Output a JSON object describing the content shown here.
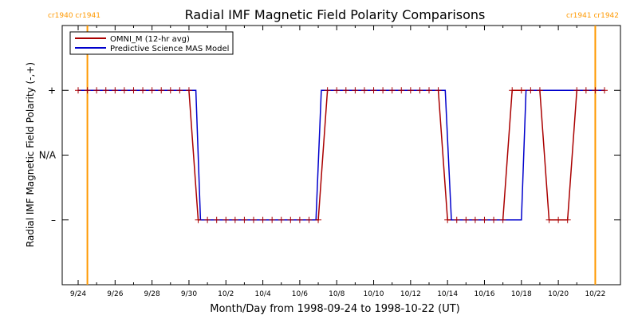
{
  "chart_data": {
    "type": "line",
    "title": "Radial IMF Magnetic Field Polarity Comparisons",
    "xlabel": "Month/Day from 1998-09-24 to 1998-10-22 (UT)",
    "ylabel": "Radial IMF Magnetic Field Polarity (-,+)",
    "xlim": [
      "1998-09-24",
      "1998-10-22"
    ],
    "ylim": [
      -2,
      2
    ],
    "x_ticks": [
      "9/24",
      "9/26",
      "9/28",
      "9/30",
      "10/2",
      "10/4",
      "10/6",
      "10/8",
      "10/10",
      "10/12",
      "10/14",
      "10/16",
      "10/18",
      "10/20",
      "10/22"
    ],
    "y_ticks": [
      {
        "value": 1,
        "label": "+"
      },
      {
        "value": 0,
        "label": "N/A"
      },
      {
        "value": -1,
        "label": "–"
      }
    ],
    "legend": {
      "placement": "top-left",
      "entries": [
        "OMNI_M (12-hr avg)",
        "Predictive Science MAS Model"
      ]
    },
    "rotation_markers": [
      {
        "date": "1998-09-24 12:00",
        "label": "cr1940 cr1941",
        "color": "#ff9900"
      },
      {
        "date": "1998-10-22 00:00",
        "label": "cr1941 cr1942",
        "color": "#ff9900"
      }
    ],
    "series": [
      {
        "name": "OMNI_M (12-hr avg)",
        "color": "#aa0000",
        "markers": true,
        "points": [
          [
            "1998-09-24 00:00",
            1
          ],
          [
            "1998-09-24 12:00",
            1
          ],
          [
            "1998-09-25 00:00",
            1
          ],
          [
            "1998-09-25 12:00",
            1
          ],
          [
            "1998-09-26 00:00",
            1
          ],
          [
            "1998-09-26 12:00",
            1
          ],
          [
            "1998-09-27 00:00",
            1
          ],
          [
            "1998-09-27 12:00",
            1
          ],
          [
            "1998-09-28 00:00",
            1
          ],
          [
            "1998-09-28 12:00",
            1
          ],
          [
            "1998-09-29 00:00",
            1
          ],
          [
            "1998-09-29 12:00",
            1
          ],
          [
            "1998-09-30 00:00",
            1
          ],
          [
            "1998-09-30 12:00",
            -1
          ],
          [
            "1998-10-01 00:00",
            -1
          ],
          [
            "1998-10-01 12:00",
            -1
          ],
          [
            "1998-10-02 00:00",
            -1
          ],
          [
            "1998-10-02 12:00",
            -1
          ],
          [
            "1998-10-03 00:00",
            -1
          ],
          [
            "1998-10-03 12:00",
            -1
          ],
          [
            "1998-10-04 00:00",
            -1
          ],
          [
            "1998-10-04 12:00",
            -1
          ],
          [
            "1998-10-05 00:00",
            -1
          ],
          [
            "1998-10-05 12:00",
            -1
          ],
          [
            "1998-10-06 00:00",
            -1
          ],
          [
            "1998-10-06 12:00",
            -1
          ],
          [
            "1998-10-07 00:00",
            -1
          ],
          [
            "1998-10-07 12:00",
            1
          ],
          [
            "1998-10-08 00:00",
            1
          ],
          [
            "1998-10-08 12:00",
            1
          ],
          [
            "1998-10-09 00:00",
            1
          ],
          [
            "1998-10-09 12:00",
            1
          ],
          [
            "1998-10-10 00:00",
            1
          ],
          [
            "1998-10-10 12:00",
            1
          ],
          [
            "1998-10-11 00:00",
            1
          ],
          [
            "1998-10-11 12:00",
            1
          ],
          [
            "1998-10-12 00:00",
            1
          ],
          [
            "1998-10-12 12:00",
            1
          ],
          [
            "1998-10-13 00:00",
            1
          ],
          [
            "1998-10-13 12:00",
            1
          ],
          [
            "1998-10-14 00:00",
            -1
          ],
          [
            "1998-10-14 12:00",
            -1
          ],
          [
            "1998-10-15 00:00",
            -1
          ],
          [
            "1998-10-15 12:00",
            -1
          ],
          [
            "1998-10-16 00:00",
            -1
          ],
          [
            "1998-10-16 12:00",
            -1
          ],
          [
            "1998-10-17 00:00",
            -1
          ],
          [
            "1998-10-17 12:00",
            1
          ],
          [
            "1998-10-18 00:00",
            1
          ],
          [
            "1998-10-18 12:00",
            1
          ],
          [
            "1998-10-19 00:00",
            1
          ],
          [
            "1998-10-19 12:00",
            -1
          ],
          [
            "1998-10-20 00:00",
            -1
          ],
          [
            "1998-10-20 12:00",
            -1
          ],
          [
            "1998-10-21 00:00",
            1
          ],
          [
            "1998-10-21 12:00",
            1
          ],
          [
            "1998-10-22 00:00",
            1
          ],
          [
            "1998-10-22 12:00",
            1
          ]
        ]
      },
      {
        "name": "Predictive Science MAS Model",
        "color": "#0000cc",
        "markers": false,
        "points": [
          [
            "1998-09-24 00:00",
            1
          ],
          [
            "1998-09-30 09:00",
            1
          ],
          [
            "1998-09-30 15:00",
            -1
          ],
          [
            "1998-10-06 21:00",
            -1
          ],
          [
            "1998-10-07 04:00",
            1
          ],
          [
            "1998-10-13 21:00",
            1
          ],
          [
            "1998-10-14 05:00",
            -1
          ],
          [
            "1998-10-18 00:00",
            -1
          ],
          [
            "1998-10-18 06:00",
            1
          ],
          [
            "1998-10-22 12:00",
            1
          ]
        ]
      }
    ]
  }
}
